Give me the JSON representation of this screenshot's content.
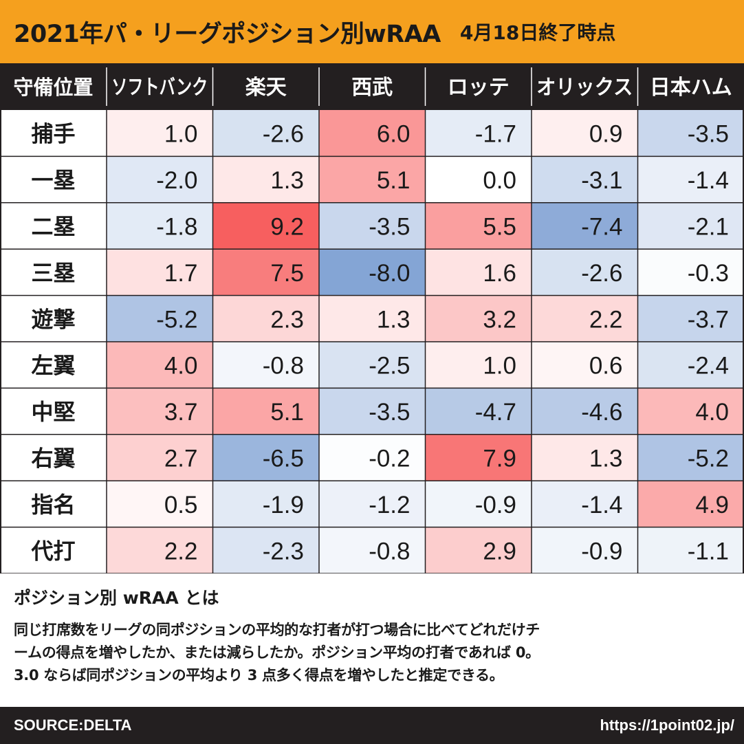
{
  "header": {
    "title": "2021年パ・リーグポジション別wRAA",
    "subtitle": "4月18日終了時点"
  },
  "chart_data": {
    "type": "heatmap",
    "corner_label": "守備位置",
    "columns": [
      "ソフトバンク",
      "楽天",
      "西武",
      "ロッテ",
      "オリックス",
      "日本ハム"
    ],
    "rows": [
      "捕手",
      "一塁",
      "二塁",
      "三塁",
      "遊撃",
      "左翼",
      "中堅",
      "右翼",
      "指名",
      "代打"
    ],
    "values": [
      [
        1.0,
        -2.6,
        6.0,
        -1.7,
        0.9,
        -3.5
      ],
      [
        -2.0,
        1.3,
        5.1,
        0.0,
        -3.1,
        -1.4
      ],
      [
        -1.8,
        9.2,
        -3.5,
        5.5,
        -7.4,
        -2.1
      ],
      [
        1.7,
        7.5,
        -8.0,
        1.6,
        -2.6,
        -0.3
      ],
      [
        -5.2,
        2.3,
        1.3,
        3.2,
        2.2,
        -3.7
      ],
      [
        4.0,
        -0.8,
        -2.5,
        1.0,
        0.6,
        -2.4
      ],
      [
        3.7,
        5.1,
        -3.5,
        -4.7,
        -4.6,
        4.0
      ],
      [
        2.7,
        -6.5,
        -0.2,
        7.9,
        1.3,
        -5.2
      ],
      [
        0.5,
        -1.9,
        -1.2,
        -0.9,
        -1.4,
        4.9
      ],
      [
        2.2,
        -2.3,
        -0.8,
        2.9,
        -0.9,
        -1.1
      ]
    ],
    "color_scale": {
      "negative": "#7297cf",
      "neutral": "#ffffff",
      "positive": "#f75f5f",
      "max_abs": 9.2
    }
  },
  "description": {
    "title": "ポジション別 wRAA とは",
    "lines": [
      "同じ打席数をリーグの同ポジションの平均的な打者が打つ場合に比べてどれだけチ",
      "ームの得点を増やしたか、または減らしたか。ポジション平均の打者であれば 0。",
      "3.0 ならば同ポジションの平均より 3 点多く得点を増やしたと推定できる。"
    ]
  },
  "footer": {
    "source": "SOURCE:DELTA",
    "url": "https://1point02.jp/"
  }
}
